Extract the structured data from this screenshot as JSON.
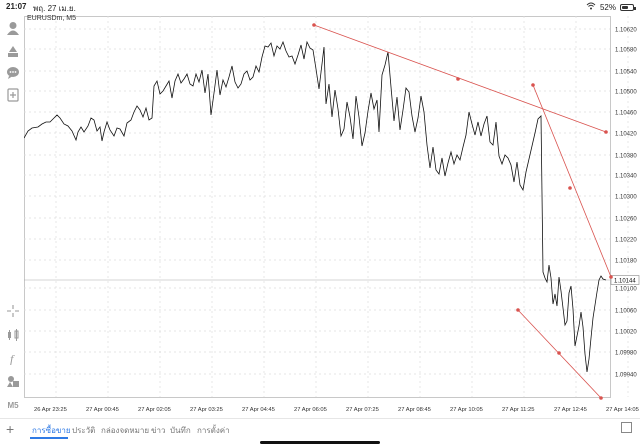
{
  "status_bar": {
    "time": "21:07",
    "date": "พฤ. 27 เม.ย.",
    "battery": "52%"
  },
  "chart": {
    "symbol_label": "EURUSDm, M5",
    "current_price": "1.10144",
    "price_ticks": [
      "1.10620",
      "1.10580",
      "1.10540",
      "1.10500",
      "1.10460",
      "1.10420",
      "1.10380",
      "1.10340",
      "1.10300",
      "1.10260",
      "1.10220",
      "1.10180",
      "1.10100",
      "1.10060",
      "1.10020",
      "1.09980",
      "1.09940"
    ],
    "time_ticks": [
      "26 Apr 23:25",
      "27 Apr 00:45",
      "27 Apr 02:05",
      "27 Apr 03:25",
      "27 Apr 04:45",
      "27 Apr 06:05",
      "27 Apr 07:25",
      "27 Apr 08:45",
      "27 Apr 10:05",
      "27 Apr 11:25",
      "27 Apr 12:45",
      "27 Apr 14:05"
    ]
  },
  "left_toolbar": [
    "account-icon",
    "trade-icon",
    "chat-icon",
    "add-document-icon",
    "crosshair-icon",
    "indicators-icon",
    "function-icon",
    "objects-icon",
    "timeframe-icon"
  ],
  "timeframe_label": "M5",
  "tabs": [
    "การซื้อขาย",
    "ประวัติ",
    "กล่องจดหมาย",
    "ข่าว",
    "บันทึก",
    "การตั้งค่า"
  ],
  "colors": {
    "accent": "#2f7ae5",
    "trendline": "#d9534f",
    "price_line": "#111111"
  }
}
